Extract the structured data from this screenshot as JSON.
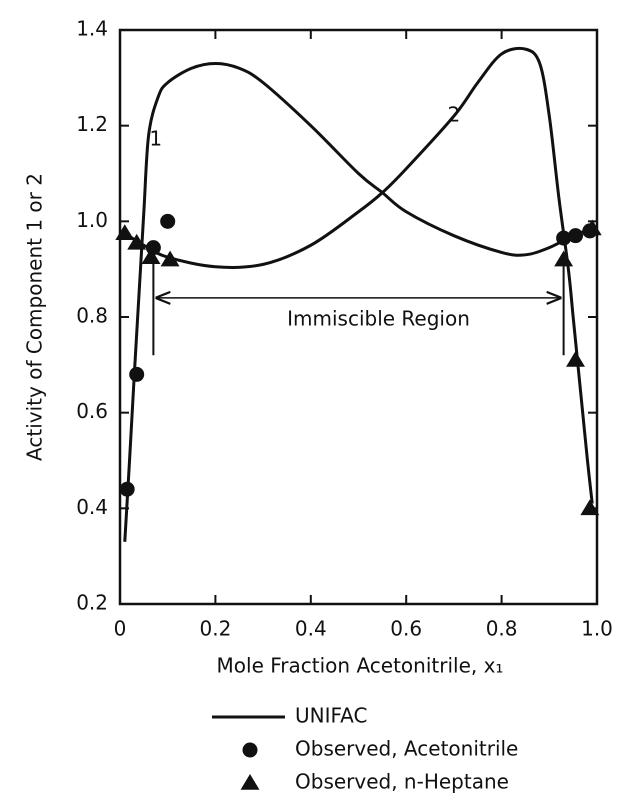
{
  "chart_data": {
    "type": "line",
    "x_label": "Mole Fraction Acetonitrile, x₁",
    "y_label": "Activity of Component 1 or 2",
    "xlim": [
      0,
      1
    ],
    "ylim": [
      0.2,
      1.4
    ],
    "xticks": [
      0,
      0.2,
      0.4,
      0.6,
      0.8,
      {
        "value": 1,
        "label": "1.0"
      }
    ],
    "yticks": [
      0.2,
      0.4,
      0.6,
      0.8,
      {
        "value": 1,
        "label": "1.0"
      },
      1.2,
      1.4
    ],
    "series": [
      {
        "name": "UNIFAC",
        "color": "#111111",
        "marker": "line",
        "curves": [
          {
            "label": "1",
            "x": [
              0.01,
              0.02,
              0.03,
              0.04,
              0.05,
              0.06,
              0.08,
              0.1,
              0.15,
              0.2,
              0.25,
              0.3,
              0.4,
              0.5,
              0.55,
              0.6,
              0.7,
              0.8,
              0.85,
              0.9,
              0.95,
              0.99
            ],
            "values": [
              0.33,
              0.5,
              0.68,
              0.85,
              1.02,
              1.18,
              1.26,
              1.29,
              1.32,
              1.33,
              1.32,
              1.29,
              1.2,
              1.1,
              1.06,
              1.02,
              0.97,
              0.935,
              0.93,
              0.945,
              0.97,
              0.985
            ]
          },
          {
            "label": "2",
            "x": [
              0.01,
              0.05,
              0.1,
              0.2,
              0.3,
              0.4,
              0.5,
              0.55,
              0.6,
              0.7,
              0.75,
              0.8,
              0.85,
              0.88,
              0.9,
              0.92,
              0.94,
              0.95,
              0.96,
              0.97,
              0.98,
              0.99
            ],
            "values": [
              0.975,
              0.95,
              0.925,
              0.905,
              0.91,
              0.95,
              1.02,
              1.06,
              1.11,
              1.22,
              1.29,
              1.35,
              1.36,
              1.33,
              1.22,
              1.05,
              0.9,
              0.8,
              0.7,
              0.6,
              0.5,
              0.41
            ]
          }
        ]
      },
      {
        "name": "Observed, Acetonitrile",
        "color": "#111111",
        "marker": "circle",
        "x": [
          0.015,
          0.035,
          0.07,
          0.1,
          0.93,
          0.955,
          0.985
        ],
        "values": [
          0.44,
          0.68,
          0.945,
          1.0,
          0.965,
          0.97,
          0.98
        ]
      },
      {
        "name": "Observed, n-Heptane",
        "color": "#111111",
        "marker": "triangle",
        "x": [
          0.01,
          0.035,
          0.065,
          0.105,
          0.93,
          0.955,
          0.985,
          0.99
        ],
        "values": [
          0.975,
          0.955,
          0.925,
          0.92,
          0.92,
          0.71,
          0.4,
          0.985
        ]
      }
    ],
    "annotation": {
      "label": "Immiscible Region",
      "x": [
        0.07,
        0.93
      ],
      "y": 0.84
    }
  }
}
